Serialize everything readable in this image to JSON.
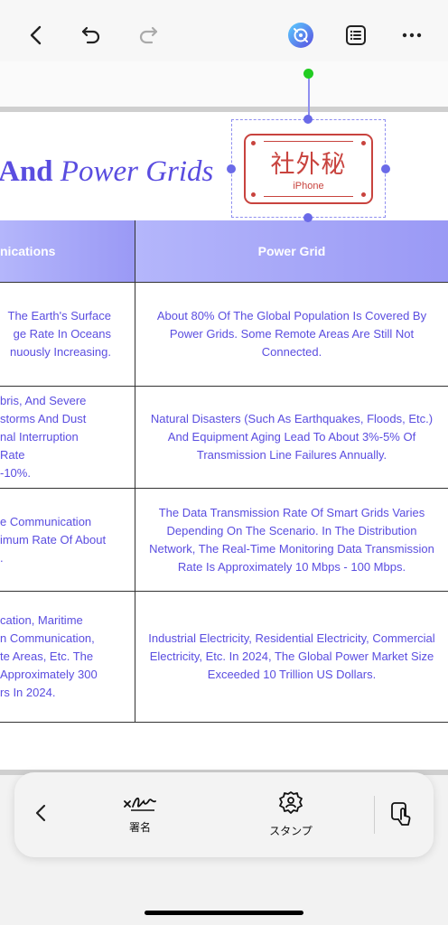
{
  "toolbar": {
    "back_icon": "chevron-left-icon",
    "undo_icon": "undo-icon",
    "redo_icon": "redo-icon",
    "ai_icon": "ai-assistant-icon",
    "list_icon": "list-icon",
    "more_icon": "more-icon"
  },
  "document": {
    "title_bold": "And",
    "title_italic": "Power Grids",
    "table": {
      "headers": [
        "nications",
        "Power Grid"
      ],
      "rows": [
        {
          "left": [
            "The Earth's Surface",
            "ge Rate In Oceans",
            "nuously Increasing."
          ],
          "right": "About 80% Of The Global Population Is Covered By Power Grids. Some Remote Areas Are Still Not Connected."
        },
        {
          "left": [
            "bris, And Severe",
            "storms And Dust",
            "nal Interruption Rate",
            "-10%."
          ],
          "right": "Natural Disasters (Such As Earthquakes, Floods, Etc.) And Equipment Aging Lead To About 3%-5% Of Transmission Line Failures Annually."
        },
        {
          "left": [
            "e Communication",
            "imum Rate Of About",
            "."
          ],
          "right": "The Data Transmission Rate Of Smart Grids Varies Depending On The Scenario. In The Distribution Network, The Real-Time Monitoring Data Transmission Rate Is Approximately 10 Mbps - 100 Mbps."
        },
        {
          "left": [
            "cation, Maritime",
            "n Communication,",
            "te Areas, Etc. The",
            "Approximately 300",
            "rs In 2024."
          ],
          "right": "Industrial Electricity, Residential Electricity, Commercial Electricity, Etc. In 2024, The Global Power Market Size Exceeded 10 Trillion US Dollars."
        }
      ]
    }
  },
  "stamp": {
    "main_text": "社外秘",
    "sub_text": "iPhone",
    "color": "#c8433e"
  },
  "dock": {
    "back_icon": "chevron-left-icon",
    "signature_label": "署名",
    "stamp_label": "スタンプ",
    "tap_icon": "tap-gesture-icon"
  },
  "colors": {
    "accent": "#5a4de0",
    "header_gradient_start": "#b4b6fb",
    "header_gradient_end": "#9a99f5",
    "selection": "#8f8ff0",
    "rotate_handle": "#22cc22"
  }
}
